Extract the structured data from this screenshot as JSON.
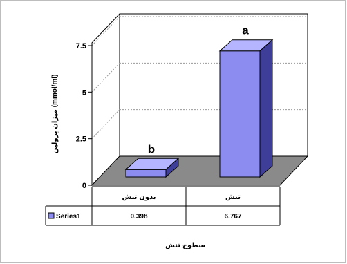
{
  "chart_data": {
    "type": "bar",
    "categories": [
      "بدون تنش",
      "تنش"
    ],
    "series": [
      {
        "name": "Series1",
        "values": [
          0.398,
          6.767
        ]
      }
    ],
    "ylim": [
      0,
      7.5
    ],
    "yticks": [
      "0",
      "2.5",
      "5",
      "7.5"
    ],
    "ytick_values": [
      0,
      2.5,
      5,
      7.5
    ],
    "ylabel": "میزان پرولین (mmol/ml)",
    "xlabel": "سطوح تنش",
    "annotations": [
      "b",
      "a"
    ],
    "data_table": {
      "row_label": "Series1",
      "values": [
        "0.398",
        "6.767"
      ]
    },
    "grid": true,
    "three_d": true,
    "colors": {
      "bar_front": "#8c8cf0",
      "bar_top": "#b4b4ff",
      "bar_side": "#3e3e98",
      "floor": "#8a8a8a",
      "legend_key": "#8c8cf0"
    }
  }
}
